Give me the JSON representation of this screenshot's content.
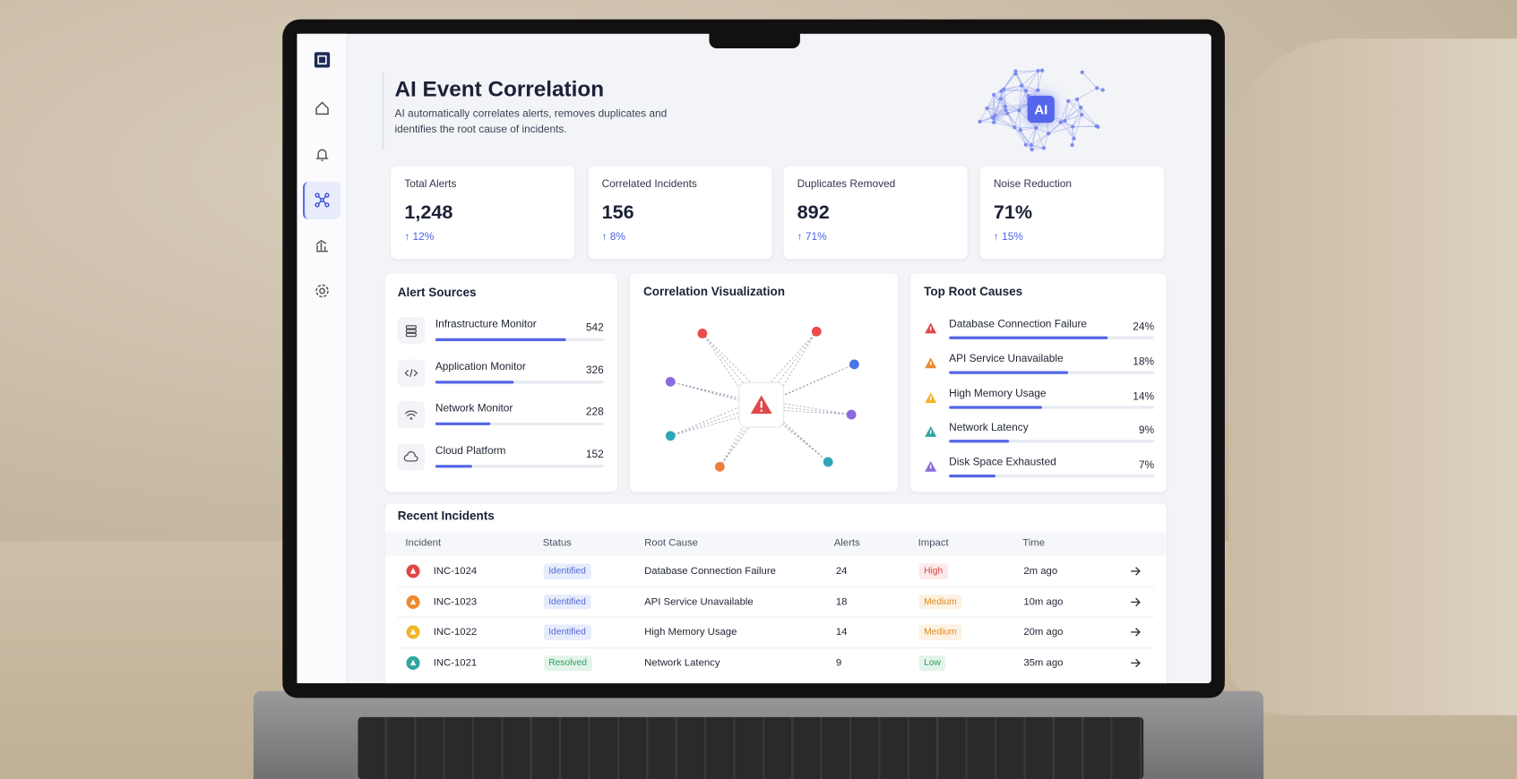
{
  "header": {
    "title": "AI Event Correlation",
    "subtitle": "AI automatically correlates alerts, removes duplicates and identifies the root cause of incidents.",
    "badge": "AI"
  },
  "stats": [
    {
      "label": "Total Alerts",
      "value": "1,248",
      "change": "↑ 12%"
    },
    {
      "label": "Correlated Incidents",
      "value": "156",
      "change": "↑ 8%"
    },
    {
      "label": "Duplicates Removed",
      "value": "892",
      "change": "↑ 71%"
    },
    {
      "label": "Noise Reduction",
      "value": "71%",
      "change": "↑ 15%"
    }
  ],
  "alert_sources": {
    "title": "Alert Sources",
    "items": [
      {
        "name": "Infrastructure Monitor",
        "count": 542
      },
      {
        "name": "Application Monitor",
        "count": 326
      },
      {
        "name": "Network Monitor",
        "count": 228
      },
      {
        "name": "Cloud Platform",
        "count": 152
      }
    ]
  },
  "correlation": {
    "title": "Correlation Visualization"
  },
  "root_causes": {
    "title": "Top Root Causes",
    "items": [
      {
        "name": "Database Connection Failure",
        "share": {
          "value": 24,
          "label": "24%"
        }
      },
      {
        "name": "API Service Unavailable",
        "share": {
          "value": 18,
          "label": "18%"
        }
      },
      {
        "name": "High Memory Usage",
        "share": {
          "value": 14,
          "label": "14%"
        }
      },
      {
        "name": "Network Latency",
        "share": {
          "value": 9,
          "label": "9%"
        }
      },
      {
        "name": "Disk Space Exhausted",
        "share": {
          "value": 7,
          "label": "7%"
        }
      }
    ]
  },
  "incidents": {
    "title": "Recent Incidents",
    "columns": [
      "Incident",
      "Status",
      "Root Cause",
      "Alerts",
      "Impact",
      "Time"
    ],
    "rows": [
      [
        "INC-1024",
        "Identified",
        "Database Connection Failure",
        24,
        "High",
        "2m ago"
      ],
      [
        "INC-1023",
        "Identified",
        "API Service Unavailable",
        18,
        "Medium",
        "10m ago"
      ],
      [
        "INC-1022",
        "Identified",
        "High Memory Usage",
        14,
        "Medium",
        "20m ago"
      ],
      [
        "INC-1021",
        "Resolved",
        "Network Latency",
        9,
        "Low",
        "35m ago"
      ]
    ]
  }
}
